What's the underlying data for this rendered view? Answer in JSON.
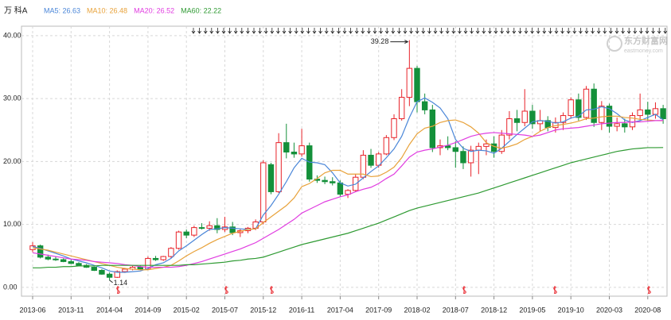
{
  "chart_data": {
    "type": "candlestick",
    "title": "万 科A",
    "watermark": {
      "name": "东方财富网",
      "url": "eastmoney.com"
    },
    "categories": [
      "2013-06",
      null,
      null,
      null,
      null,
      "2013-11",
      null,
      null,
      null,
      null,
      "2014-04",
      null,
      null,
      null,
      null,
      "2014-09",
      null,
      null,
      null,
      null,
      "2015-02",
      null,
      null,
      null,
      null,
      "2015-07",
      null,
      null,
      null,
      null,
      "2015-12",
      null,
      null,
      null,
      null,
      "2016-11",
      null,
      null,
      null,
      null,
      "2017-04",
      null,
      null,
      null,
      null,
      "2017-09",
      null,
      null,
      null,
      null,
      "2018-02",
      null,
      null,
      null,
      null,
      "2018-07",
      null,
      null,
      null,
      null,
      "2018-12",
      null,
      null,
      null,
      null,
      "2019-05",
      null,
      null,
      null,
      null,
      "2019-10",
      null,
      null,
      null,
      null,
      "2020-03",
      null,
      null,
      null,
      null,
      "2020-08",
      null,
      null
    ],
    "ohlc": [
      [
        6.0,
        7.2,
        5.6,
        6.6
      ],
      [
        6.6,
        6.8,
        4.6,
        4.8
      ],
      [
        4.8,
        5.2,
        4.3,
        4.5
      ],
      [
        4.5,
        4.9,
        4.2,
        4.4
      ],
      [
        4.4,
        4.6,
        4.0,
        4.1
      ],
      [
        4.1,
        4.4,
        3.7,
        3.8
      ],
      [
        3.8,
        4.0,
        3.4,
        3.5
      ],
      [
        3.5,
        3.7,
        3.1,
        3.2
      ],
      [
        3.2,
        3.3,
        2.6,
        2.7
      ],
      [
        2.7,
        2.9,
        2.0,
        2.1
      ],
      [
        2.1,
        2.4,
        1.14,
        1.6
      ],
      [
        1.6,
        2.7,
        1.5,
        2.5
      ],
      [
        2.5,
        3.1,
        2.3,
        2.9
      ],
      [
        2.9,
        3.4,
        2.7,
        3.2
      ],
      [
        3.2,
        3.5,
        2.8,
        2.9
      ],
      [
        2.9,
        4.9,
        2.8,
        4.6
      ],
      [
        4.6,
        5.0,
        4.2,
        4.4
      ],
      [
        4.4,
        5.0,
        4.2,
        4.9
      ],
      [
        4.9,
        6.4,
        4.7,
        6.2
      ],
      [
        6.2,
        9.0,
        6.0,
        8.8
      ],
      [
        8.8,
        9.2,
        7.8,
        8.3
      ],
      [
        8.3,
        9.8,
        8.0,
        9.5
      ],
      [
        9.5,
        10.2,
        9.2,
        9.4
      ],
      [
        9.4,
        10.5,
        9.0,
        9.8
      ],
      [
        9.8,
        11.0,
        8.6,
        9.2
      ],
      [
        9.2,
        11.2,
        8.8,
        9.6
      ],
      [
        9.6,
        10.4,
        8.3,
        8.7
      ],
      [
        8.7,
        9.3,
        8.0,
        9.0
      ],
      [
        9.0,
        9.6,
        8.6,
        9.4
      ],
      [
        9.4,
        10.8,
        9.1,
        10.4
      ],
      [
        10.4,
        20.2,
        10.0,
        19.8
      ],
      [
        19.5,
        19.8,
        14.8,
        15.2
      ],
      [
        15.2,
        24.5,
        15.0,
        23.0
      ],
      [
        23.0,
        26.0,
        20.5,
        21.5
      ],
      [
        21.5,
        23.0,
        20.6,
        21.2
      ],
      [
        21.2,
        25.2,
        20.8,
        22.5
      ],
      [
        22.5,
        23.0,
        16.8,
        17.2
      ],
      [
        17.2,
        17.8,
        16.6,
        17.0
      ],
      [
        17.0,
        17.6,
        16.4,
        16.8
      ],
      [
        16.8,
        17.5,
        16.2,
        16.6
      ],
      [
        16.6,
        17.0,
        14.4,
        14.8
      ],
      [
        14.8,
        15.6,
        14.2,
        15.4
      ],
      [
        15.4,
        18.0,
        15.2,
        17.5
      ],
      [
        17.5,
        21.8,
        17.2,
        21.0
      ],
      [
        21.0,
        22.0,
        19.0,
        19.4
      ],
      [
        19.4,
        21.5,
        19.0,
        21.2
      ],
      [
        21.2,
        24.2,
        21.0,
        23.8
      ],
      [
        23.8,
        27.5,
        23.4,
        26.8
      ],
      [
        26.8,
        31.5,
        26.5,
        30.2
      ],
      [
        30.2,
        39.28,
        28.8,
        34.8
      ],
      [
        34.8,
        35.2,
        27.8,
        29.5
      ],
      [
        29.5,
        30.8,
        27.5,
        28.2
      ],
      [
        28.2,
        29.0,
        21.5,
        22.2
      ],
      [
        22.2,
        23.5,
        21.0,
        22.5
      ],
      [
        22.5,
        24.0,
        21.8,
        22.2
      ],
      [
        22.2,
        23.2,
        19.0,
        21.6
      ],
      [
        21.6,
        22.4,
        18.8,
        19.8
      ],
      [
        19.8,
        22.5,
        17.6,
        21.8
      ],
      [
        21.8,
        23.0,
        18.0,
        22.4
      ],
      [
        22.4,
        23.5,
        21.0,
        22.8
      ],
      [
        22.8,
        24.0,
        20.6,
        21.6
      ],
      [
        21.6,
        25.0,
        21.2,
        24.2
      ],
      [
        24.2,
        28.0,
        23.5,
        26.8
      ],
      [
        26.8,
        28.2,
        24.8,
        26.2
      ],
      [
        26.2,
        31.5,
        25.6,
        28.0
      ],
      [
        28.0,
        29.0,
        25.2,
        26.0
      ],
      [
        26.0,
        28.2,
        24.8,
        26.5
      ],
      [
        26.5,
        27.2,
        24.8,
        25.4
      ],
      [
        25.4,
        27.0,
        24.6,
        26.2
      ],
      [
        26.2,
        27.8,
        25.0,
        27.3
      ],
      [
        27.3,
        30.2,
        26.8,
        29.8
      ],
      [
        29.8,
        30.8,
        26.5,
        27.0
      ],
      [
        27.0,
        32.0,
        26.6,
        31.5
      ],
      [
        31.5,
        32.4,
        25.5,
        26.2
      ],
      [
        26.2,
        29.6,
        25.0,
        28.8
      ],
      [
        28.8,
        29.2,
        24.6,
        25.6
      ],
      [
        25.6,
        27.0,
        24.8,
        26.0
      ],
      [
        26.0,
        26.8,
        24.6,
        25.5
      ],
      [
        25.5,
        27.8,
        25.0,
        27.3
      ],
      [
        27.3,
        30.8,
        26.5,
        28.2
      ],
      [
        28.2,
        29.5,
        26.4,
        27.5
      ],
      [
        27.5,
        29.4,
        26.8,
        28.4
      ],
      [
        28.4,
        29.0,
        26.0,
        26.8
      ]
    ],
    "up_color": "#e8232a",
    "down_color": "#14903a",
    "series": [
      {
        "name": "MA5: 26.63",
        "color": "#4a86d8",
        "values": [
          6.5,
          6.2,
          5.8,
          5.4,
          5.0,
          4.5,
          4.2,
          3.9,
          3.5,
          3.1,
          2.6,
          2.4,
          2.4,
          2.5,
          2.6,
          3.0,
          3.6,
          3.9,
          4.6,
          5.8,
          6.6,
          7.5,
          8.4,
          9.2,
          9.3,
          9.5,
          9.4,
          9.3,
          9.2,
          9.3,
          11.5,
          13.0,
          14.8,
          16.8,
          19.0,
          20.5,
          19.9,
          19.8,
          19.5,
          18.2,
          16.6,
          16.1,
          16.4,
          17.4,
          18.4,
          19.3,
          20.6,
          22.0,
          24.0,
          27.0,
          29.5,
          30.1,
          29.4,
          28.5,
          26.8,
          23.5,
          22.1,
          21.6,
          21.8,
          21.7,
          21.3,
          22.1,
          23.2,
          24.3,
          25.3,
          26.3,
          26.5,
          26.4,
          26.1,
          26.3,
          26.9,
          27.2,
          28.2,
          28.3,
          28.7,
          28.4,
          27.6,
          26.6,
          26.2,
          26.5,
          27.0,
          27.5,
          26.63
        ]
      },
      {
        "name": "MA10: 26.48",
        "color": "#e8a23a",
        "values": [
          6.3,
          6.1,
          5.9,
          5.6,
          5.3,
          5.0,
          4.7,
          4.4,
          4.1,
          3.8,
          3.5,
          3.2,
          3.0,
          2.9,
          2.8,
          2.8,
          3.0,
          3.2,
          3.5,
          4.2,
          5.0,
          5.7,
          6.3,
          7.0,
          7.6,
          8.1,
          8.6,
          8.9,
          9.2,
          9.3,
          10.3,
          11.2,
          12.1,
          13.0,
          14.2,
          16.0,
          16.5,
          17.3,
          18.2,
          18.6,
          18.6,
          18.0,
          18.0,
          18.0,
          17.6,
          17.7,
          18.3,
          19.1,
          20.6,
          22.7,
          24.4,
          25.3,
          25.6,
          26.2,
          26.5,
          26.6,
          26.2,
          25.5,
          24.5,
          23.0,
          22.4,
          22.1,
          22.4,
          22.8,
          23.5,
          24.0,
          24.8,
          25.4,
          25.7,
          25.9,
          26.1,
          26.4,
          26.8,
          26.9,
          27.1,
          27.2,
          27.2,
          27.0,
          26.9,
          26.7,
          26.6,
          26.5,
          26.48
        ]
      },
      {
        "name": "MA20: 26.52",
        "color": "#e03ce0",
        "values": [
          5.5,
          5.3,
          5.1,
          4.9,
          4.7,
          4.5,
          4.4,
          4.3,
          4.1,
          4.0,
          3.9,
          3.8,
          3.6,
          3.5,
          3.3,
          3.2,
          3.2,
          3.2,
          3.2,
          3.3,
          3.5,
          3.8,
          4.1,
          4.5,
          4.9,
          5.3,
          5.7,
          6.1,
          6.6,
          7.1,
          7.8,
          8.5,
          9.2,
          10.0,
          10.8,
          11.8,
          12.4,
          13.0,
          13.6,
          14.0,
          14.4,
          14.7,
          15.2,
          15.6,
          15.9,
          16.5,
          17.3,
          18.0,
          19.3,
          20.7,
          21.5,
          21.8,
          22.0,
          22.3,
          22.6,
          23.0,
          23.5,
          24.0,
          24.3,
          24.5,
          24.6,
          24.5,
          24.4,
          24.3,
          24.2,
          24.0,
          24.2,
          24.6,
          25.0,
          25.2,
          25.3,
          25.4,
          25.6,
          25.8,
          26.0,
          26.1,
          26.2,
          26.2,
          26.3,
          26.3,
          26.4,
          26.5,
          26.52
        ]
      },
      {
        "name": "MA60: 22.22",
        "color": "#2e9a32",
        "values": [
          3.1,
          3.1,
          3.2,
          3.2,
          3.3,
          3.3,
          3.4,
          3.4,
          3.4,
          3.5,
          3.5,
          3.5,
          3.5,
          3.5,
          3.5,
          3.5,
          3.5,
          3.5,
          3.5,
          3.5,
          3.6,
          3.6,
          3.7,
          3.8,
          3.9,
          4.0,
          4.2,
          4.3,
          4.5,
          4.6,
          4.8,
          5.2,
          5.6,
          6.0,
          6.4,
          6.8,
          7.1,
          7.4,
          7.7,
          8.0,
          8.3,
          8.6,
          9.0,
          9.4,
          9.8,
          10.2,
          10.7,
          11.2,
          11.7,
          12.2,
          12.6,
          12.9,
          13.2,
          13.5,
          13.8,
          14.1,
          14.4,
          14.7,
          15.0,
          15.4,
          15.8,
          16.2,
          16.6,
          17.0,
          17.4,
          17.8,
          18.2,
          18.6,
          19.0,
          19.4,
          19.8,
          20.1,
          20.4,
          20.7,
          21.0,
          21.3,
          21.6,
          21.8,
          22.0,
          22.1,
          22.2,
          22.2,
          22.22
        ]
      }
    ],
    "ylim": [
      -1.4,
      41.5
    ],
    "yticks": [
      {
        "value": 0,
        "label": "0.00"
      },
      {
        "value": 10,
        "label": "10.00"
      },
      {
        "value": 20,
        "label": "20.00"
      },
      {
        "value": 30,
        "label": "30.00"
      },
      {
        "value": 40,
        "label": "40.00"
      }
    ],
    "grid": true
  }
}
